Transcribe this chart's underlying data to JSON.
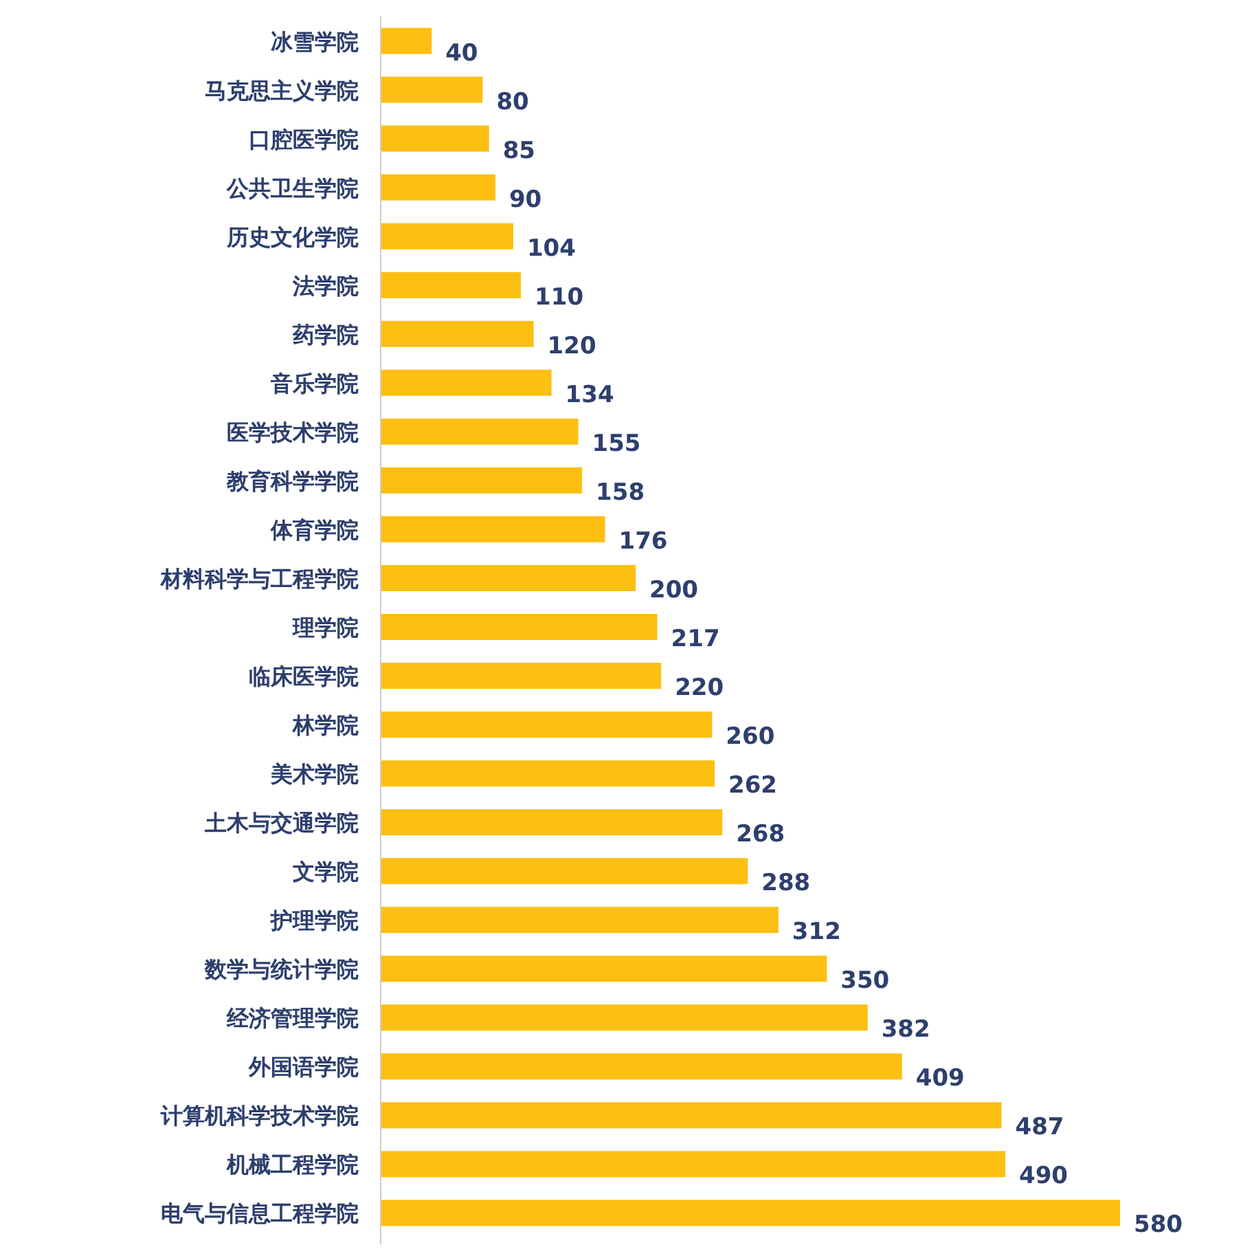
{
  "chart_data": {
    "type": "bar",
    "orientation": "horizontal",
    "categories": [
      "冰雪学院",
      "马克思主义学院",
      "口腔医学院",
      "公共卫生学院",
      "历史文化学院",
      "法学院",
      "药学院",
      "音乐学院",
      "医学技术学院",
      "教育科学学院",
      "体育学院",
      "材料科学与工程学院",
      "理学院",
      "临床医学院",
      "林学院",
      "美术学院",
      "土木与交通学院",
      "文学院",
      "护理学院",
      "数学与统计学院",
      "经济管理学院",
      "外国语学院",
      "计算机科学技术学院",
      "机械工程学院",
      "电气与信息工程学院"
    ],
    "values": [
      40,
      80,
      85,
      90,
      104,
      110,
      120,
      134,
      155,
      158,
      176,
      200,
      217,
      220,
      260,
      262,
      268,
      288,
      312,
      350,
      382,
      409,
      487,
      490,
      580
    ],
    "color": "#fcbf12",
    "data_labels": true
  }
}
